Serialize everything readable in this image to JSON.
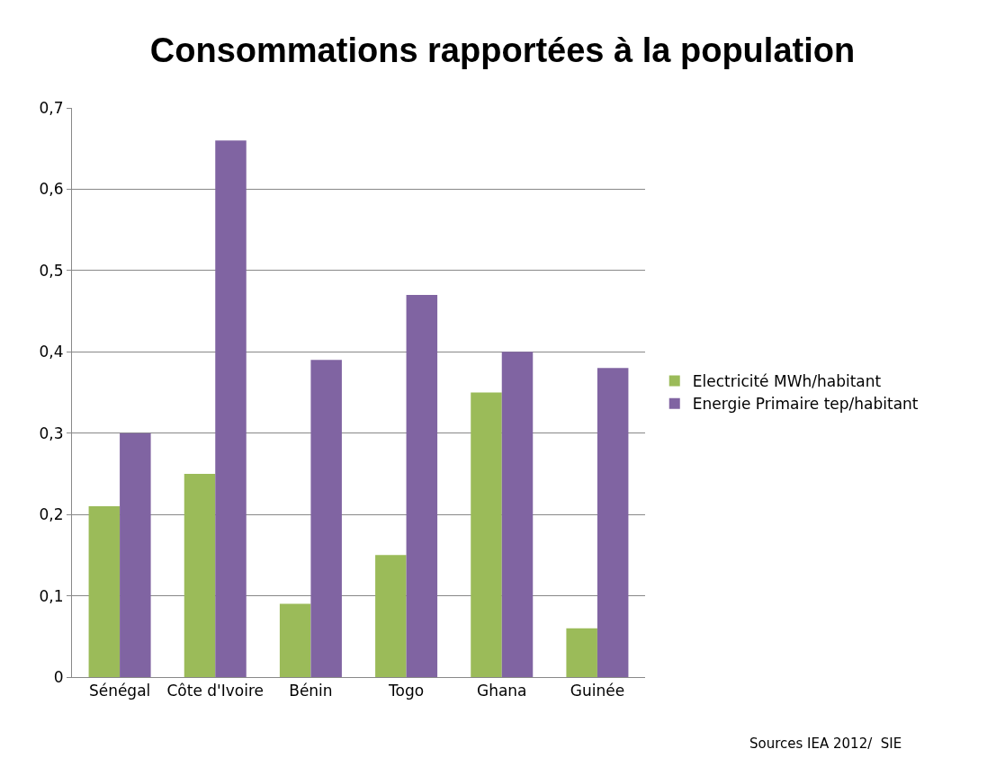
{
  "chart_data": {
    "type": "bar",
    "title": "Consommations rapportées à la population",
    "categories": [
      "Sénégal",
      "Côte d'Ivoire",
      "Bénin",
      "Togo",
      "Ghana",
      "Guinée"
    ],
    "series": [
      {
        "name": "Electricité MWh/habitant",
        "color": "#9bbb59",
        "values": [
          0.21,
          0.25,
          0.09,
          0.15,
          0.35,
          0.06
        ]
      },
      {
        "name": "Energie Primaire tep/habitant",
        "color": "#8064a2",
        "values": [
          0.3,
          0.66,
          0.39,
          0.47,
          0.4,
          0.38
        ]
      }
    ],
    "ylim": [
      0,
      0.7
    ],
    "yticks": [
      {
        "value": 0,
        "label": "0"
      },
      {
        "value": 0.1,
        "label": "0,1"
      },
      {
        "value": 0.2,
        "label": "0,2"
      },
      {
        "value": 0.3,
        "label": "0,3"
      },
      {
        "value": 0.4,
        "label": "0,4"
      },
      {
        "value": 0.5,
        "label": "0,5"
      },
      {
        "value": 0.6,
        "label": "0,6"
      },
      {
        "value": 0.7,
        "label": "0,7"
      }
    ],
    "grid": "y",
    "legend": "right",
    "annotations": [
      "Sources IEA 2012/  SIE"
    ]
  }
}
